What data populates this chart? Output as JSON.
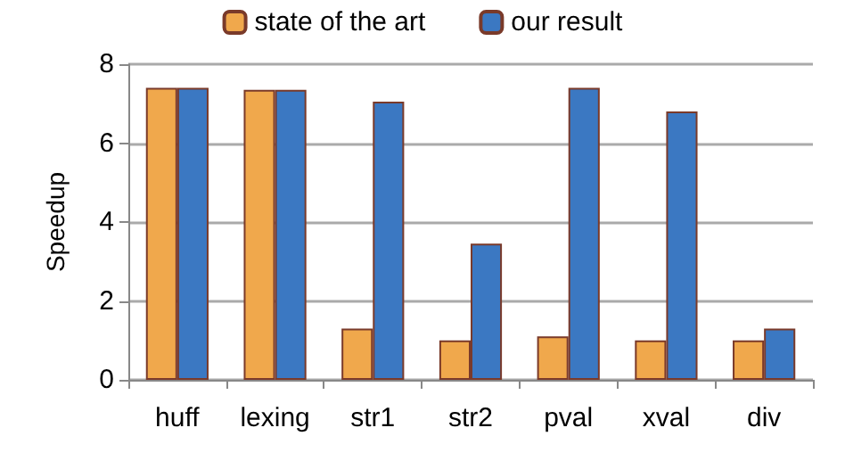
{
  "chart_data": {
    "type": "bar",
    "ylabel": "Speedup",
    "categories": [
      "huff",
      "lexing",
      "str1",
      "str2",
      "pval",
      "xval",
      "div"
    ],
    "series": [
      {
        "name": "state of the art",
        "color": "#f0a84c",
        "values": [
          7.4,
          7.35,
          1.3,
          1.0,
          1.1,
          1.0,
          1.0
        ]
      },
      {
        "name": "our result",
        "color": "#3b78c2",
        "values": [
          7.4,
          7.35,
          7.05,
          3.45,
          7.4,
          6.8,
          1.3
        ]
      }
    ],
    "ylim": [
      0,
      8
    ],
    "yticks": [
      0,
      2,
      4,
      6,
      8
    ],
    "grid": "y",
    "legend": "top"
  }
}
